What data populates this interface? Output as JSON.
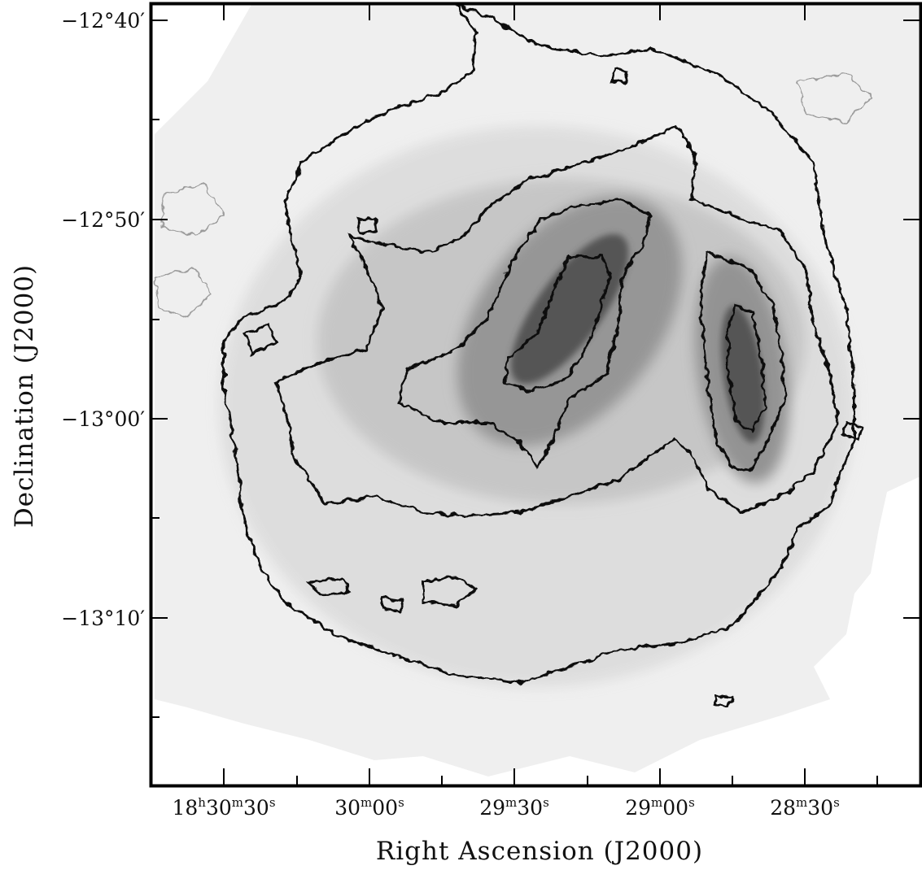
{
  "chart_data": {
    "type": "heatmap",
    "title": "",
    "xlabel": "Right Ascension (J2000)",
    "ylabel": "Declination (J2000)",
    "colormap": "grayscale",
    "grid": false,
    "colors": {
      "frame": "#000000",
      "contour": "#111111",
      "faint_contour": "#9a9a9a",
      "background": "#ffffff"
    },
    "x_ticks": [
      {
        "h": "18",
        "m": "30",
        "s": "30"
      },
      {
        "h": "",
        "m": "30",
        "s": "00"
      },
      {
        "h": "",
        "m": "29",
        "s": "30"
      },
      {
        "h": "",
        "m": "29",
        "s": "00"
      },
      {
        "h": "",
        "m": "28",
        "s": "30"
      }
    ],
    "y_ticks": [
      "−12°40′",
      "−12°50′",
      "−13°00′",
      "−13°10′"
    ],
    "xlim": [
      "18h30m45s",
      "18h28m15s"
    ],
    "ylim": [
      "−13°18′",
      "−12°40′"
    ],
    "contours": [
      {
        "level": 1,
        "description": "outer shell enclosing the emission region"
      },
      {
        "level": 2,
        "description": "inner plateau"
      },
      {
        "level": 3,
        "description": "two elongated cores"
      },
      {
        "level": 4,
        "description": "core peaks"
      }
    ]
  }
}
